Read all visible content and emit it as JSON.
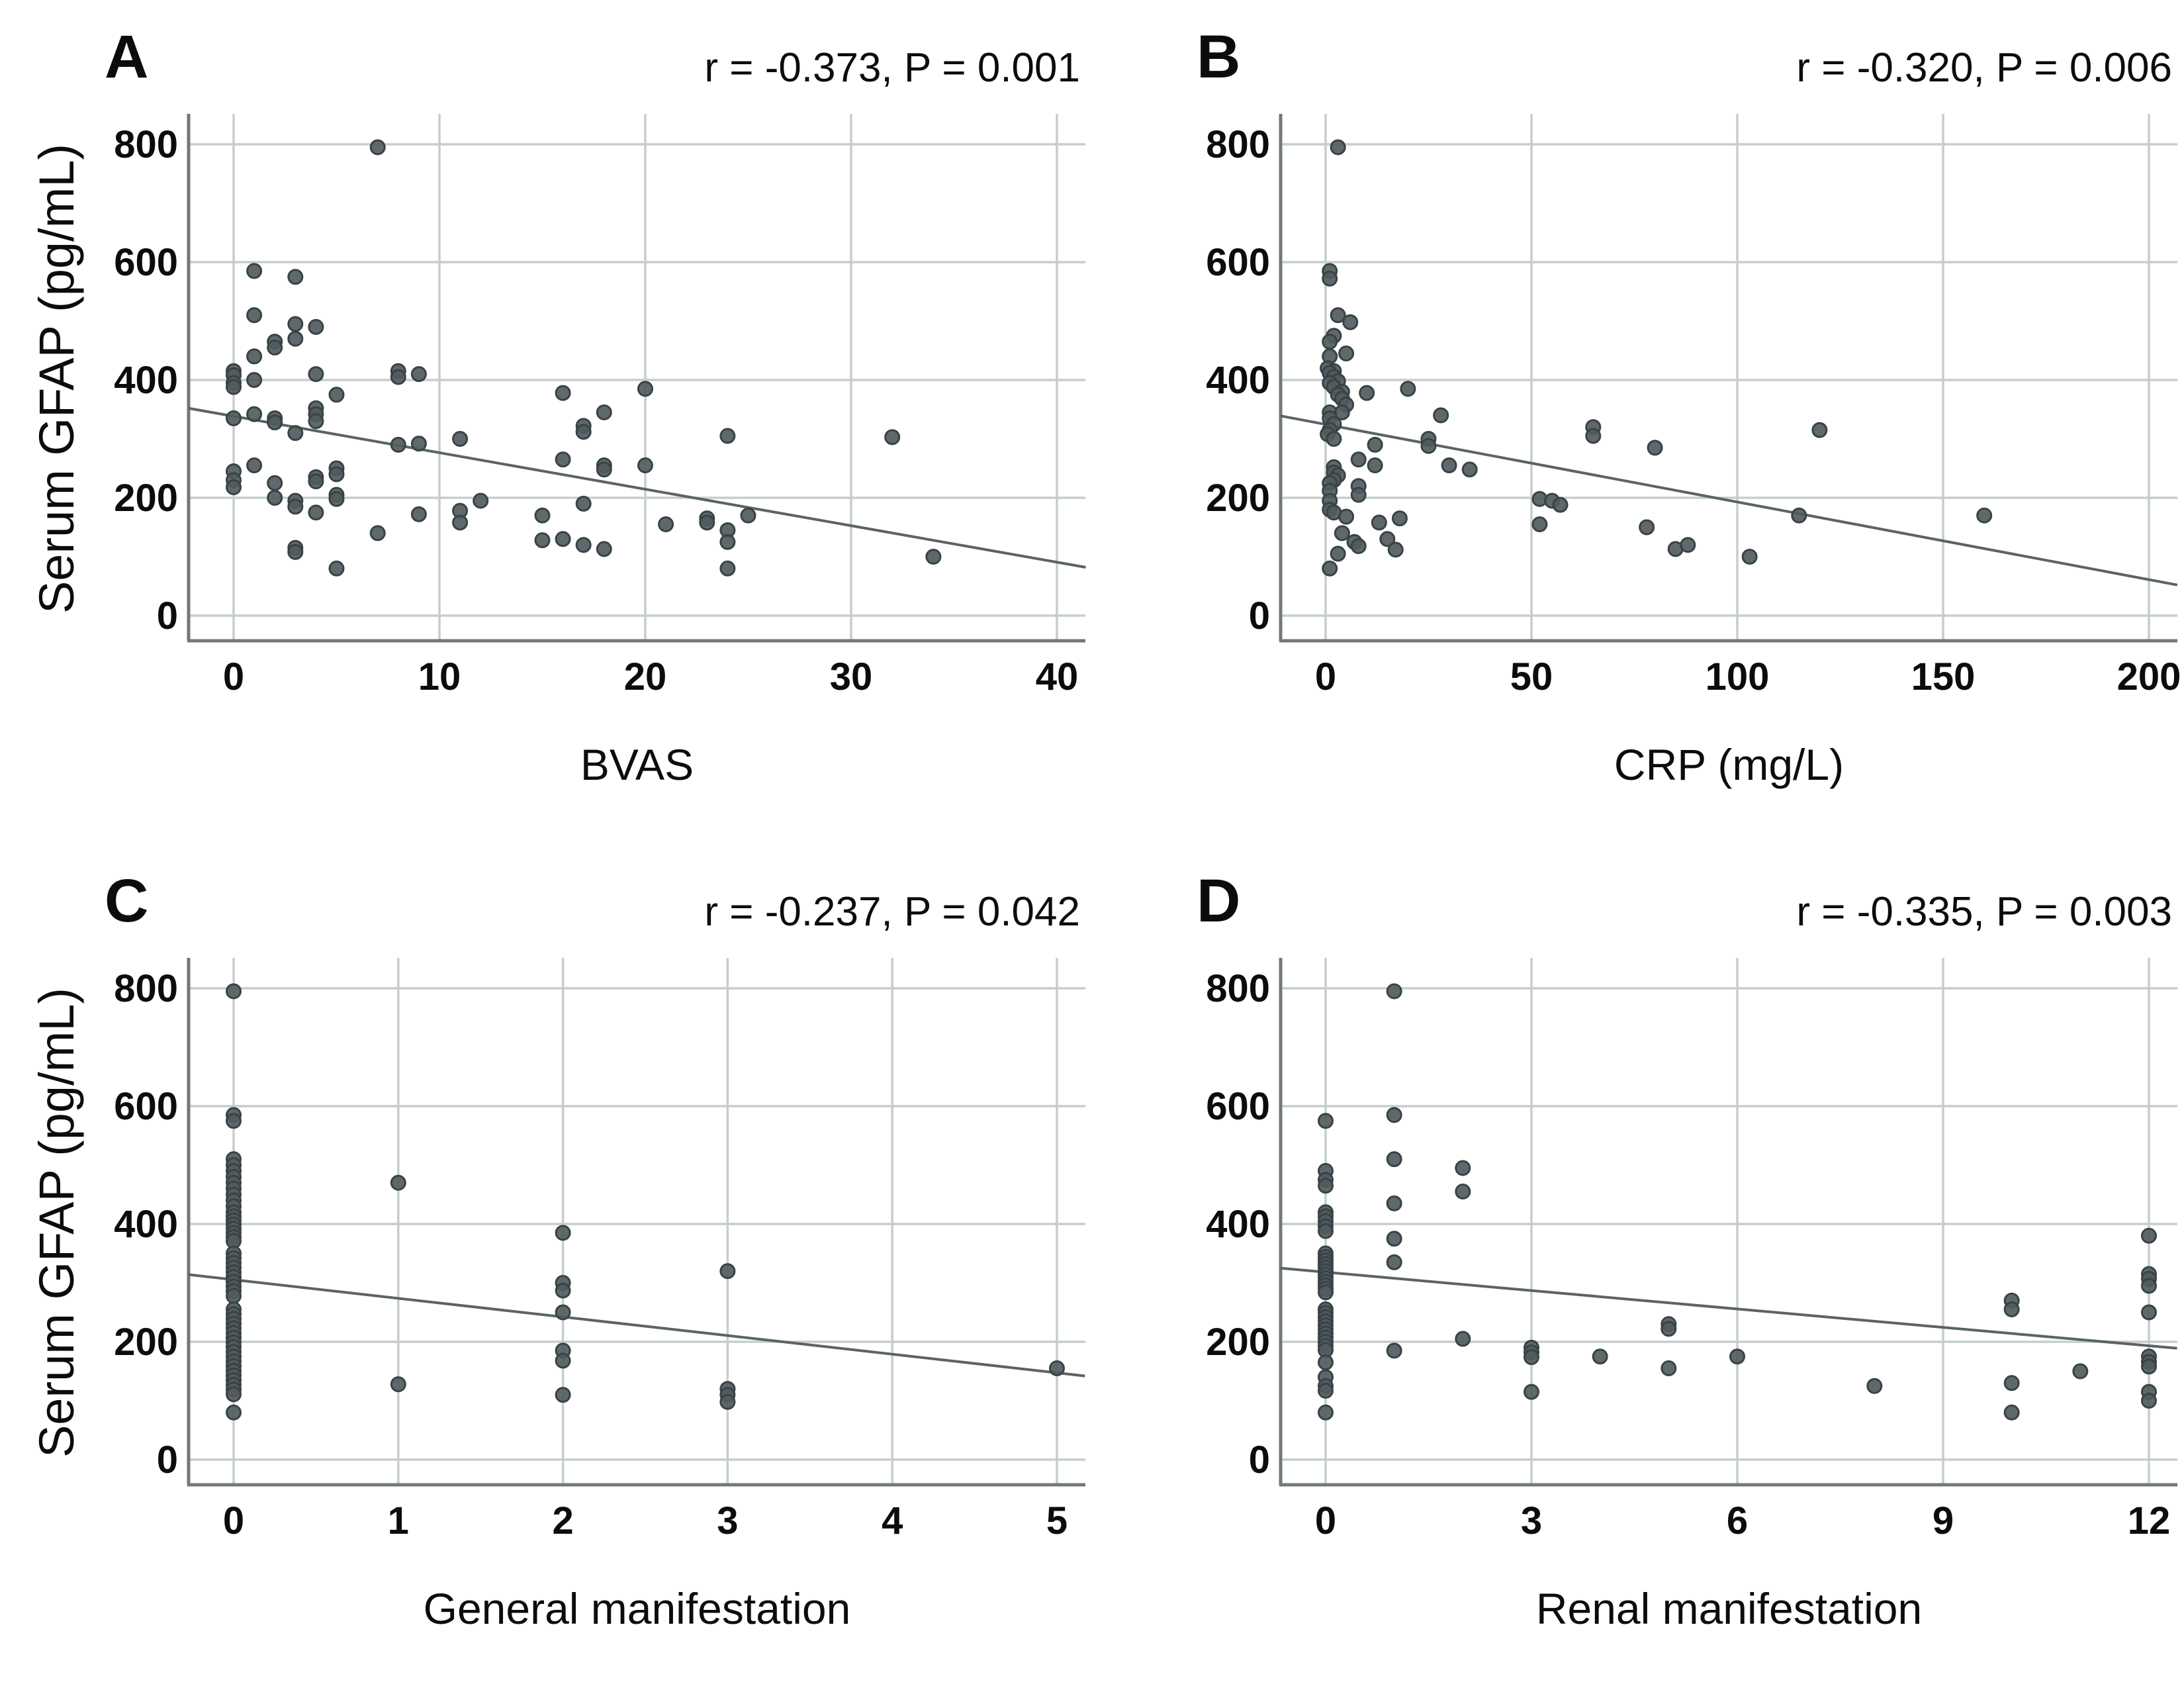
{
  "figure": {
    "description": "Four-panel scatter plot figure of serum GFAP correlations",
    "colors": {
      "background": "#ffffff",
      "point_fill": "#515b5e",
      "point_stroke": "#394345",
      "gridline": "#c6cecb",
      "axis_line": "#717a78",
      "trend_line": "#5a6462",
      "text": "#0c0c0c"
    }
  },
  "chart_data": [
    {
      "type": "scatter",
      "panel_label": "A",
      "annotation": "r = -0.373, P = 0.001",
      "xlabel": "BVAS",
      "ylabel": "Serum GFAP (pg/mL)",
      "xticks": [
        0,
        10,
        20,
        30,
        40
      ],
      "yticks": [
        0,
        200,
        400,
        600,
        800
      ],
      "xlim": [
        -2.2,
        41.5
      ],
      "ylim": [
        -45,
        855
      ],
      "grid": true,
      "legend": "none",
      "trendline": {
        "x1": -2.19,
        "y1": 352,
        "x2": 41.4,
        "y2": 82
      },
      "points": [
        [
          0,
          415
        ],
        [
          0,
          408
        ],
        [
          0,
          395
        ],
        [
          0,
          388
        ],
        [
          0,
          335
        ],
        [
          0,
          245
        ],
        [
          0,
          230
        ],
        [
          0,
          218
        ],
        [
          1,
          585
        ],
        [
          1,
          510
        ],
        [
          1,
          440
        ],
        [
          1,
          400
        ],
        [
          1,
          342
        ],
        [
          1,
          255
        ],
        [
          2,
          465
        ],
        [
          2,
          455
        ],
        [
          2,
          335
        ],
        [
          2,
          328
        ],
        [
          2,
          225
        ],
        [
          2,
          200
        ],
        [
          3,
          575
        ],
        [
          3,
          495
        ],
        [
          3,
          470
        ],
        [
          3,
          310
        ],
        [
          3,
          195
        ],
        [
          3,
          185
        ],
        [
          3,
          115
        ],
        [
          3,
          108
        ],
        [
          4,
          490
        ],
        [
          4,
          410
        ],
        [
          4,
          352
        ],
        [
          4,
          342
        ],
        [
          4,
          330
        ],
        [
          4,
          235
        ],
        [
          4,
          228
        ],
        [
          4,
          175
        ],
        [
          5,
          375
        ],
        [
          5,
          250
        ],
        [
          5,
          240
        ],
        [
          5,
          205
        ],
        [
          5,
          198
        ],
        [
          5,
          80
        ],
        [
          7,
          795
        ],
        [
          7,
          140
        ],
        [
          8,
          415
        ],
        [
          8,
          405
        ],
        [
          8,
          290
        ],
        [
          9,
          410
        ],
        [
          9,
          292
        ],
        [
          9,
          172
        ],
        [
          11,
          300
        ],
        [
          11,
          178
        ],
        [
          11,
          158
        ],
        [
          12,
          195
        ],
        [
          15,
          170
        ],
        [
          15,
          128
        ],
        [
          16,
          378
        ],
        [
          16,
          265
        ],
        [
          16,
          130
        ],
        [
          17,
          322
        ],
        [
          17,
          312
        ],
        [
          17,
          190
        ],
        [
          17,
          120
        ],
        [
          18,
          345
        ],
        [
          18,
          255
        ],
        [
          18,
          248
        ],
        [
          18,
          113
        ],
        [
          20,
          385
        ],
        [
          20,
          255
        ],
        [
          21,
          155
        ],
        [
          23,
          165
        ],
        [
          23,
          158
        ],
        [
          24,
          305
        ],
        [
          24,
          145
        ],
        [
          24,
          125
        ],
        [
          24,
          80
        ],
        [
          25,
          170
        ],
        [
          32,
          303
        ],
        [
          34,
          100
        ]
      ]
    },
    {
      "type": "scatter",
      "panel_label": "B",
      "annotation": "r = -0.320, P = 0.006",
      "xlabel": "CRP (mg/L)",
      "xticks": [
        0,
        50,
        100,
        150,
        200
      ],
      "yticks": [
        0,
        200,
        400,
        600,
        800
      ],
      "xlim": [
        -11,
        207
      ],
      "ylim": [
        -45,
        855
      ],
      "grid": true,
      "legend": "none",
      "trendline": {
        "x1": -10.9,
        "y1": 339,
        "x2": 206.9,
        "y2": 52
      },
      "points": [
        [
          3,
          795
        ],
        [
          1,
          585
        ],
        [
          1,
          572
        ],
        [
          3,
          510
        ],
        [
          6,
          498
        ],
        [
          2,
          475
        ],
        [
          1,
          465
        ],
        [
          5,
          445
        ],
        [
          1,
          440
        ],
        [
          0.5,
          420
        ],
        [
          2,
          415
        ],
        [
          1,
          412
        ],
        [
          2,
          405
        ],
        [
          3,
          398
        ],
        [
          1,
          395
        ],
        [
          2,
          388
        ],
        [
          4,
          380
        ],
        [
          3,
          375
        ],
        [
          10,
          378
        ],
        [
          20,
          385
        ],
        [
          4,
          368
        ],
        [
          5,
          358
        ],
        [
          1,
          345
        ],
        [
          4,
          345
        ],
        [
          28,
          340
        ],
        [
          1,
          335
        ],
        [
          2,
          325
        ],
        [
          1,
          315
        ],
        [
          0.5,
          308
        ],
        [
          2,
          300
        ],
        [
          65,
          320
        ],
        [
          65,
          305
        ],
        [
          120,
          315
        ],
        [
          12,
          290
        ],
        [
          25,
          300
        ],
        [
          25,
          288
        ],
        [
          80,
          285
        ],
        [
          8,
          265
        ],
        [
          12,
          255
        ],
        [
          30,
          255
        ],
        [
          35,
          248
        ],
        [
          2,
          252
        ],
        [
          2,
          243
        ],
        [
          3,
          238
        ],
        [
          2,
          230
        ],
        [
          1,
          225
        ],
        [
          8,
          220
        ],
        [
          1,
          212
        ],
        [
          8,
          205
        ],
        [
          1,
          195
        ],
        [
          1,
          180
        ],
        [
          2,
          175
        ],
        [
          52,
          198
        ],
        [
          55,
          195
        ],
        [
          57,
          188
        ],
        [
          115,
          170
        ],
        [
          160,
          170
        ],
        [
          5,
          168
        ],
        [
          13,
          158
        ],
        [
          18,
          165
        ],
        [
          52,
          155
        ],
        [
          78,
          150
        ],
        [
          4,
          140
        ],
        [
          7,
          125
        ],
        [
          8,
          118
        ],
        [
          15,
          130
        ],
        [
          17,
          112
        ],
        [
          85,
          113
        ],
        [
          88,
          120
        ],
        [
          103,
          100
        ],
        [
          3,
          105
        ],
        [
          1,
          80
        ]
      ]
    },
    {
      "type": "scatter",
      "panel_label": "C",
      "annotation": "r = -0.237, P = 0.042",
      "xlabel": "General manifestation",
      "ylabel": "Serum GFAP (pg/mL)",
      "xticks": [
        0,
        1,
        2,
        3,
        4,
        5
      ],
      "yticks": [
        0,
        200,
        400,
        600,
        800
      ],
      "xlim": [
        -0.28,
        5.2
      ],
      "ylim": [
        -45,
        855
      ],
      "grid": true,
      "legend": "none",
      "trendline": {
        "x1": -0.273,
        "y1": 314,
        "x2": 5.17,
        "y2": 142
      },
      "points": [
        [
          0,
          795
        ],
        [
          0,
          585
        ],
        [
          0,
          575
        ],
        [
          0,
          510
        ],
        [
          0,
          500
        ],
        [
          0,
          490
        ],
        [
          0,
          480
        ],
        [
          0,
          470
        ],
        [
          0,
          460
        ],
        [
          0,
          450
        ],
        [
          0,
          440
        ],
        [
          0,
          430
        ],
        [
          0,
          420
        ],
        [
          0,
          413
        ],
        [
          0,
          406
        ],
        [
          0,
          399
        ],
        [
          0,
          392
        ],
        [
          0,
          385
        ],
        [
          0,
          378
        ],
        [
          0,
          371
        ],
        [
          0,
          350
        ],
        [
          0,
          342
        ],
        [
          0,
          334
        ],
        [
          0,
          326
        ],
        [
          0,
          318
        ],
        [
          0,
          310
        ],
        [
          0,
          302
        ],
        [
          0,
          294
        ],
        [
          0,
          286
        ],
        [
          0,
          278
        ],
        [
          0,
          255
        ],
        [
          0,
          247
        ],
        [
          0,
          239
        ],
        [
          0,
          231
        ],
        [
          0,
          223
        ],
        [
          0,
          215
        ],
        [
          0,
          207
        ],
        [
          0,
          199
        ],
        [
          0,
          191
        ],
        [
          0,
          183
        ],
        [
          0,
          175
        ],
        [
          0,
          167
        ],
        [
          0,
          159
        ],
        [
          0,
          151
        ],
        [
          0,
          143
        ],
        [
          0,
          135
        ],
        [
          0,
          127
        ],
        [
          0,
          119
        ],
        [
          0,
          111
        ],
        [
          0,
          80
        ],
        [
          1,
          470
        ],
        [
          1,
          128
        ],
        [
          2,
          385
        ],
        [
          2,
          300
        ],
        [
          2,
          287
        ],
        [
          2,
          250
        ],
        [
          2,
          185
        ],
        [
          2,
          168
        ],
        [
          2,
          110
        ],
        [
          3,
          320
        ],
        [
          3,
          120
        ],
        [
          3,
          110
        ],
        [
          3,
          98
        ],
        [
          5,
          155
        ]
      ]
    },
    {
      "type": "scatter",
      "panel_label": "D",
      "annotation": "r = -0.335, P = 0.003",
      "xlabel": "Renal manifestation",
      "xticks": [
        0,
        3,
        6,
        9,
        12
      ],
      "yticks": [
        0,
        200,
        400,
        600,
        800
      ],
      "xlim": [
        -0.66,
        12.45
      ],
      "ylim": [
        -45,
        855
      ],
      "grid": true,
      "legend": "none",
      "trendline": {
        "x1": -0.656,
        "y1": 325,
        "x2": 12.41,
        "y2": 189
      },
      "points": [
        [
          0,
          575
        ],
        [
          0,
          490
        ],
        [
          0,
          475
        ],
        [
          0,
          465
        ],
        [
          0,
          420
        ],
        [
          0,
          413
        ],
        [
          0,
          405
        ],
        [
          0,
          396
        ],
        [
          0,
          388
        ],
        [
          0,
          350
        ],
        [
          0,
          344
        ],
        [
          0,
          338
        ],
        [
          0,
          332
        ],
        [
          0,
          326
        ],
        [
          0,
          320
        ],
        [
          0,
          314
        ],
        [
          0,
          308
        ],
        [
          0,
          302
        ],
        [
          0,
          296
        ],
        [
          0,
          290
        ],
        [
          0,
          284
        ],
        [
          0,
          255
        ],
        [
          0,
          249
        ],
        [
          0,
          242
        ],
        [
          0,
          235
        ],
        [
          0,
          228
        ],
        [
          0,
          221
        ],
        [
          0,
          214
        ],
        [
          0,
          207
        ],
        [
          0,
          200
        ],
        [
          0,
          193
        ],
        [
          0,
          186
        ],
        [
          0,
          165
        ],
        [
          0,
          140
        ],
        [
          0,
          125
        ],
        [
          0,
          117
        ],
        [
          0,
          80
        ],
        [
          1,
          795
        ],
        [
          1,
          585
        ],
        [
          1,
          510
        ],
        [
          1,
          435
        ],
        [
          1,
          375
        ],
        [
          1,
          335
        ],
        [
          1,
          185
        ],
        [
          2,
          495
        ],
        [
          2,
          455
        ],
        [
          2,
          205
        ],
        [
          3,
          190
        ],
        [
          3,
          182
        ],
        [
          3,
          174
        ],
        [
          3,
          115
        ],
        [
          4,
          175
        ],
        [
          5,
          230
        ],
        [
          5,
          222
        ],
        [
          5,
          155
        ],
        [
          6,
          175
        ],
        [
          8,
          125
        ],
        [
          10,
          270
        ],
        [
          10,
          255
        ],
        [
          10,
          130
        ],
        [
          10,
          80
        ],
        [
          11,
          150
        ],
        [
          12,
          380
        ],
        [
          12,
          315
        ],
        [
          12,
          307
        ],
        [
          12,
          295
        ],
        [
          12,
          250
        ],
        [
          12,
          175
        ],
        [
          12,
          166
        ],
        [
          12,
          158
        ],
        [
          12,
          115
        ],
        [
          12,
          100
        ]
      ]
    }
  ]
}
